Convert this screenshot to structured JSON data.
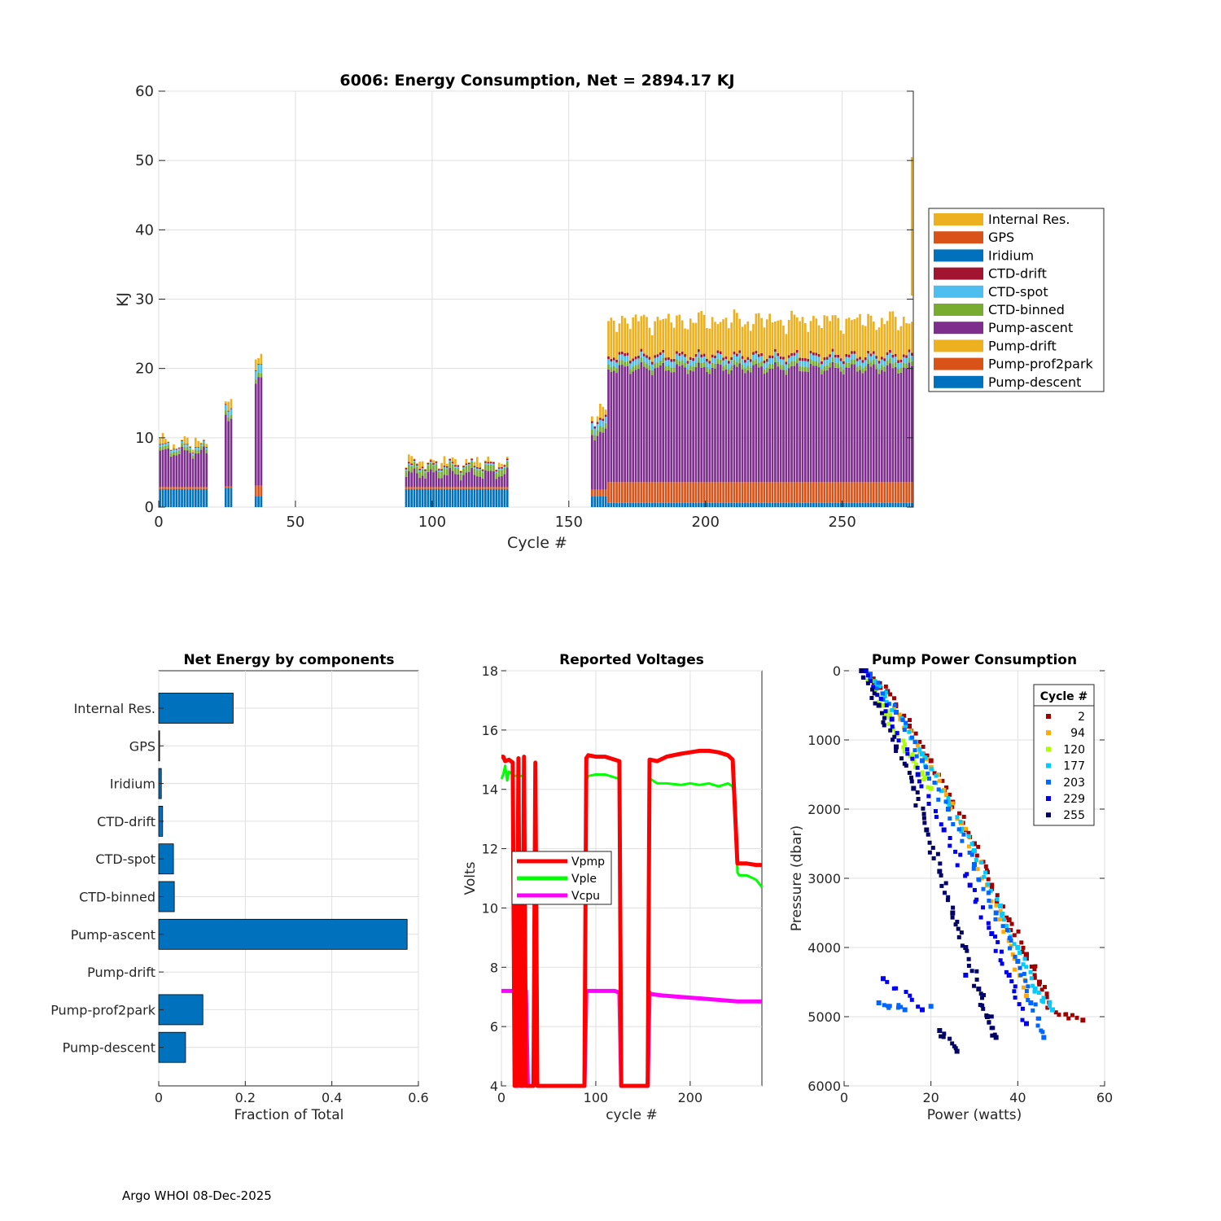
{
  "footer": "Argo WHOI 08-Dec-2025",
  "colors": {
    "pump_descent": "#0072bd",
    "pump_prof2park": "#d95319",
    "pump_drift": "#edb120",
    "pump_ascent": "#7e2f8e",
    "ctd_binned": "#77ac30",
    "ctd_spot": "#4dbeee",
    "ctd_drift": "#a2142f",
    "iridium": "#0072bd",
    "gps": "#d95319",
    "internal_res": "#edb120",
    "vpmp": "#ff0000",
    "vple": "#00ff00",
    "vcpu": "#ff00ff"
  },
  "chart_data": [
    {
      "id": "energy",
      "type": "bar",
      "stacked": true,
      "title": "6006: Energy Consumption,  Net = 2894.17 KJ",
      "xlabel": "Cycle #",
      "ylabel": "KJ",
      "xlim": [
        0,
        276
      ],
      "ylim": [
        0,
        60
      ],
      "xticks": [
        0,
        50,
        100,
        150,
        200,
        250
      ],
      "yticks": [
        0,
        10,
        20,
        30,
        40,
        50,
        60
      ],
      "grid": true,
      "legend_position": "outside-right",
      "legend": [
        "Internal Res.",
        "GPS",
        "Iridium",
        "CTD-drift",
        "CTD-spot",
        "CTD-binned",
        "Pump-ascent",
        "Pump-drift",
        "Pump-prof2park",
        "Pump-descent"
      ],
      "groups": [
        {
          "start": 0,
          "end": 17,
          "descent": 2.6,
          "prof2park": 0.3,
          "ascent": 5.0,
          "binned": 0.5,
          "spot": 0.3,
          "drift": 0.1,
          "pdrift": 0.3
        },
        {
          "start": 24,
          "end": 26,
          "descent": 2.8,
          "prof2park": 0.2,
          "ascent": 10.0,
          "binned": 0.6,
          "spot": 0.8,
          "drift": 0.1,
          "pdrift": 0.6
        },
        {
          "start": 35,
          "end": 37,
          "descent": 1.6,
          "prof2park": 1.5,
          "ascent": 15.0,
          "binned": 0.6,
          "spot": 1.2,
          "drift": 0.1,
          "pdrift": 1.2
        },
        {
          "start": 90,
          "end": 127,
          "descent": 2.6,
          "prof2park": 0.3,
          "ascent": 1.9,
          "binned": 0.9,
          "spot": 0.2,
          "drift": 0.2,
          "pdrift": 0.2
        },
        {
          "start": 158,
          "end": 163,
          "descent": 1.6,
          "prof2park": 0.9,
          "ascent": 8.0,
          "binned": 0.8,
          "spot": 0.9,
          "drift": 0.3,
          "pdrift": 1.0
        },
        {
          "start": 164,
          "end": 275,
          "descent": 0.6,
          "prof2park": 3.0,
          "ascent": 16.4,
          "binned": 0.7,
          "spot": 0.8,
          "drift": 0.4,
          "pdrift": 5.0
        }
      ]
    },
    {
      "id": "components",
      "type": "bar",
      "orientation": "horizontal",
      "title": "Net Energy by components",
      "xlabel": "Fraction of Total",
      "ylabel": "",
      "xlim": [
        0,
        0.6
      ],
      "xticks": [
        0,
        0.2,
        0.4,
        0.6
      ],
      "xticklabels": [
        "0",
        "0.2",
        "0.4",
        "0.6"
      ],
      "grid": true,
      "categories": [
        "Internal Res.",
        "GPS",
        "Iridium",
        "CTD-drift",
        "CTD-spot",
        "CTD-binned",
        "Pump-ascent",
        "Pump-drift",
        "Pump-prof2park",
        "Pump-descent"
      ],
      "values": [
        0.172,
        0.002,
        0.006,
        0.009,
        0.034,
        0.036,
        0.574,
        0.0,
        0.102,
        0.062
      ]
    },
    {
      "id": "voltages",
      "type": "line",
      "title": "Reported Voltages",
      "xlabel": "cycle #",
      "ylabel": "Volts",
      "xlim": [
        0,
        276
      ],
      "ylim": [
        4,
        18
      ],
      "xticks": [
        0,
        100,
        200
      ],
      "yticks": [
        4,
        6,
        8,
        10,
        12,
        14,
        16,
        18
      ],
      "grid": true,
      "legend_position": "middle-left",
      "series": [
        {
          "name": "Vpmp",
          "x": [
            0,
            2,
            4,
            8,
            12,
            14,
            16,
            18,
            20,
            22,
            24,
            26,
            28,
            34,
            36,
            38,
            88,
            90,
            92,
            100,
            110,
            120,
            125,
            127,
            155,
            157,
            158,
            165,
            175,
            190,
            200,
            210,
            220,
            230,
            240,
            245,
            250,
            252,
            260,
            270,
            276
          ],
          "y": [
            15.1,
            15.1,
            14.95,
            15.0,
            14.9,
            4,
            4,
            15.05,
            4,
            4,
            15.1,
            4,
            4,
            4,
            14.9,
            4,
            4,
            15.05,
            15.15,
            15.1,
            15.1,
            15.0,
            14.95,
            4,
            4,
            15.0,
            15.0,
            14.95,
            15.1,
            15.2,
            15.25,
            15.3,
            15.3,
            15.25,
            15.15,
            15.0,
            11.5,
            11.5,
            11.5,
            11.45,
            11.45
          ]
        },
        {
          "name": "Vple",
          "x": [
            0,
            2,
            4,
            6,
            8,
            10,
            14,
            24,
            26,
            36,
            37,
            88,
            90,
            92,
            100,
            110,
            120,
            125,
            127,
            155,
            157,
            158,
            165,
            175,
            190,
            200,
            210,
            220,
            230,
            240,
            245,
            248,
            250,
            252,
            260,
            270,
            276
          ],
          "y": [
            14.35,
            14.5,
            14.8,
            14.3,
            14.6,
            14.55,
            14.45,
            14.45,
            null,
            14.4,
            14.3,
            null,
            14.3,
            14.45,
            14.5,
            14.5,
            14.4,
            14.35,
            null,
            null,
            14.3,
            14.35,
            14.2,
            14.2,
            14.15,
            14.2,
            14.15,
            14.2,
            14.1,
            14.2,
            14.1,
            13.4,
            11.2,
            11.1,
            11.1,
            10.95,
            10.7
          ]
        },
        {
          "name": "Vcpu",
          "x": [
            0,
            10,
            14,
            16,
            18,
            20,
            22,
            24,
            26,
            28,
            34,
            36,
            38,
            88,
            90,
            92,
            120,
            125,
            127,
            155,
            157,
            158,
            170,
            190,
            210,
            230,
            250,
            270,
            276
          ],
          "y": [
            7.2,
            7.2,
            7.2,
            4,
            4,
            7.2,
            4,
            4,
            7.2,
            4,
            4,
            7.2,
            4,
            4,
            7.2,
            7.2,
            7.2,
            7.15,
            4,
            4,
            7.15,
            7.1,
            7.05,
            7.0,
            6.95,
            6.9,
            6.85,
            6.85,
            6.85
          ]
        }
      ]
    },
    {
      "id": "pump_power",
      "type": "scatter",
      "title": "Pump Power Consumption",
      "xlabel": "Power (watts)",
      "ylabel": "Pressure (dbar)",
      "xlim": [
        0,
        60
      ],
      "ylim": [
        0,
        6000
      ],
      "y_reversed": true,
      "xticks": [
        0,
        20,
        40,
        60
      ],
      "yticks": [
        0,
        1000,
        2000,
        3000,
        4000,
        5000,
        6000
      ],
      "grid": true,
      "legend_title": "Cycle #",
      "legend_position": "top-right",
      "series": [
        {
          "name": "2",
          "color": "#a00000",
          "x": [
            5,
            10,
            15,
            20,
            25,
            30,
            34,
            38,
            42,
            45,
            48,
            55
          ],
          "y": [
            0,
            300,
            800,
            1300,
            1900,
            2500,
            3100,
            3600,
            4100,
            4500,
            4900,
            5050
          ]
        },
        {
          "name": "94",
          "color": "#ffaa00",
          "x": [
            6,
            13,
            20,
            27,
            33,
            38,
            42
          ],
          "y": [
            50,
            700,
            1400,
            2200,
            3100,
            3900,
            4700
          ]
        },
        {
          "name": "120",
          "color": "#aaff00",
          "x": [
            5,
            9,
            12,
            16,
            20
          ],
          "y": [
            0,
            500,
            900,
            1300,
            1700
          ]
        },
        {
          "name": "177",
          "color": "#00ccff",
          "x": [
            6,
            12,
            18,
            24,
            30,
            36,
            40,
            44,
            48
          ],
          "y": [
            50,
            600,
            1200,
            1900,
            2600,
            3400,
            4000,
            4600,
            4900
          ]
        },
        {
          "name": "203",
          "color": "#0066ff",
          "x": [
            6,
            12,
            18,
            24,
            30,
            35,
            40,
            43,
            46,
            8,
            14,
            20
          ],
          "y": [
            50,
            600,
            1300,
            2000,
            2800,
            3500,
            4200,
            4800,
            5300,
            4800,
            4900,
            4850
          ]
        },
        {
          "name": "229",
          "color": "#0000ee",
          "x": [
            5,
            11,
            17,
            23,
            29,
            34,
            38,
            42,
            9,
            18,
            28
          ],
          "y": [
            0,
            700,
            1500,
            2300,
            3100,
            3800,
            4400,
            5100,
            4450,
            4900,
            4400
          ]
        },
        {
          "name": "255",
          "color": "#000066",
          "x": [
            4,
            8,
            12,
            16,
            19,
            22,
            25,
            28,
            31,
            33,
            35,
            22,
            26
          ],
          "y": [
            0,
            500,
            1100,
            1700,
            2300,
            2900,
            3500,
            4000,
            4600,
            5000,
            5300,
            5200,
            5500
          ]
        }
      ]
    }
  ]
}
